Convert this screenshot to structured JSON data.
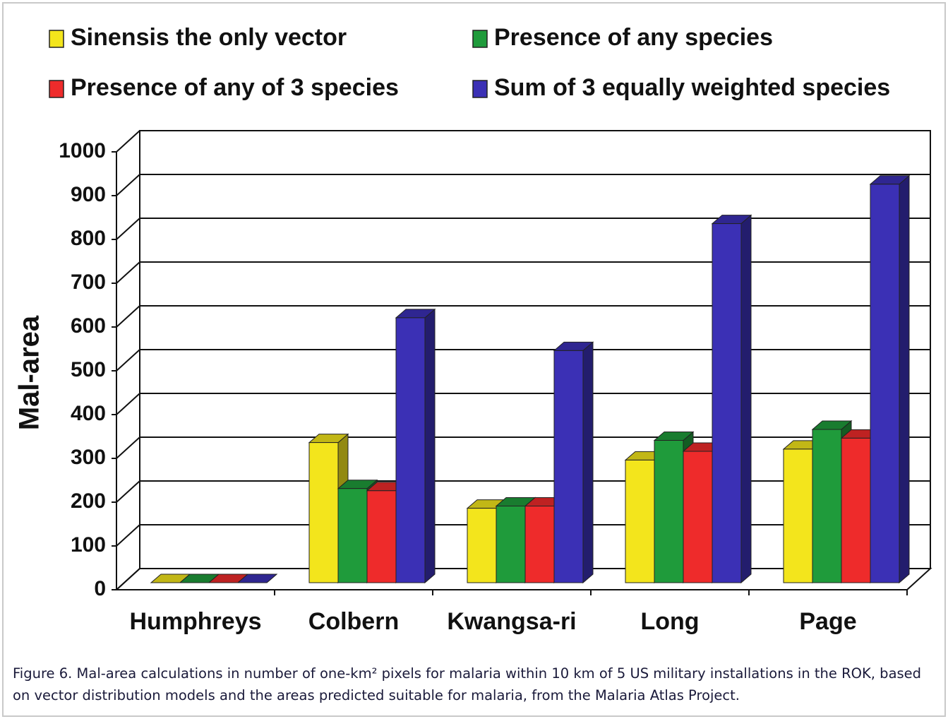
{
  "chart_data": {
    "type": "bar3d",
    "y_label": "Mal-area",
    "categories": [
      "Humphreys",
      "Colbern",
      "Kwangsa-ri",
      "Long",
      "Page"
    ],
    "series": [
      {
        "name": "Sinensis the only vector",
        "color": "#f3e51c",
        "values": [
          0,
          320,
          170,
          280,
          305
        ]
      },
      {
        "name": "Presence of any species",
        "color": "#1f9b3b",
        "values": [
          0,
          215,
          175,
          325,
          350
        ]
      },
      {
        "name": "Presence of any of 3 species",
        "color": "#ee2b2b",
        "values": [
          0,
          210,
          175,
          300,
          330
        ]
      },
      {
        "name": "Sum of 3 equally weighted species",
        "color": "#3b30b5",
        "values": [
          0,
          605,
          530,
          820,
          910
        ]
      }
    ],
    "ylim": [
      0,
      1000
    ],
    "yticks": [
      0,
      100,
      200,
      300,
      400,
      500,
      600,
      700,
      800,
      900,
      1000
    ],
    "grid": true,
    "caption": "Figure 6. Mal-area calculations in number of one-km² pixels for malaria within 10 km of 5 US military installations in the ROK, based on vector distribution models and the areas predicted suitable for malaria, from the Malaria Atlas Project."
  }
}
